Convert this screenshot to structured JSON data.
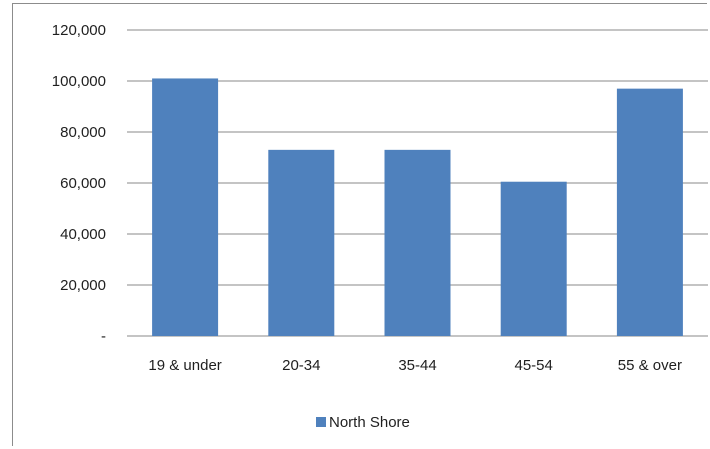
{
  "chart_data": {
    "type": "bar",
    "categories": [
      "19 & under",
      "20-34",
      "35-44",
      "45-54",
      "55 & over"
    ],
    "series": [
      {
        "name": "North Shore",
        "values": [
          101000,
          73000,
          73000,
          60500,
          97000
        ],
        "color": "#4f81bd"
      }
    ],
    "ylim": [
      0,
      120000
    ],
    "yticks": [
      0,
      20000,
      40000,
      60000,
      80000,
      100000,
      120000
    ],
    "ytick_labels": [
      "-",
      "20,000",
      "40,000",
      "60,000",
      "80,000",
      "100,000",
      "120,000"
    ],
    "grid": true,
    "legend_position": "bottom"
  }
}
